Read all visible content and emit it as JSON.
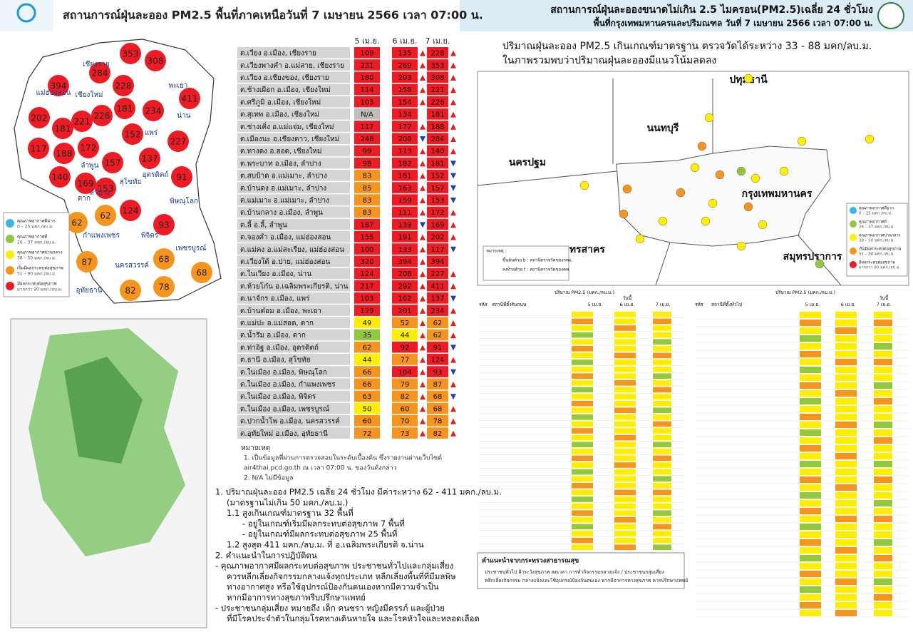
{
  "left": {
    "title": "สถานการณ์ฝุ่นละออง PM2.5 พื้นที่ภาคเหนือวันที่ 7 เมษายน 2566 เวลา 07:00 น.",
    "map_values": [
      353,
      308,
      284,
      394,
      228,
      411,
      202,
      181,
      221,
      226,
      181,
      234,
      152,
      227,
      117,
      188,
      172,
      157,
      137,
      91,
      140,
      169,
      153,
      124,
      62,
      62,
      93,
      87,
      68,
      68,
      82,
      78
    ],
    "provinces": [
      "แม่ฮ่องสอน",
      "เชียงใหม่",
      "เชียงราย",
      "พะเยา",
      "น่าน",
      "แพร่",
      "ลำปาง",
      "ลำพูน",
      "อุตรดิตถ์",
      "สุโขทัย",
      "ตาก",
      "พิษณุโลก",
      "กำแพงเพชร",
      "พิจิตร",
      "เพชรบูรณ์",
      "นครสวรรค์",
      "อุทัยธานี"
    ],
    "legend": [
      {
        "label": "คุณภาพอากาศดีมาก",
        "range": "0 – 25 มคก./ลบ.ม.",
        "max": 25,
        "color": "#3ab7e8"
      },
      {
        "label": "คุณภาพอากาศดี",
        "range": "26 – 37 มคก./ลบ.ม.",
        "max": 37,
        "color": "#92c83e"
      },
      {
        "label": "คุณภาพอากาศปานกลาง",
        "range": "38 – 50 มคก./ลบ.ม.",
        "max": 50,
        "color": "#ffee00"
      },
      {
        "label": "เริ่มมีผลกระทบต่อสุขภาพ",
        "range": "51 – 90 มคก./ลบ.ม.",
        "max": 90,
        "color": "#f7941d"
      },
      {
        "label": "มีผลกระทบต่อสุขภาพ",
        "range": "มากกว่า 90 มคก./ลบ.ม.",
        "color": "#ed1c24"
      }
    ],
    "table": {
      "headers": [
        "5 เม.ย.",
        "6 เม.ย.",
        "7 เม.ย."
      ],
      "rows": [
        {
          "station": "ต.เวียง อ.เมือง, เชียงราย",
          "values": [
            109,
            135,
            228
          ]
        },
        {
          "station": "ต.เวียงพางคำ อ.แม่สาย, เชียงราย",
          "values": [
            231,
            269,
            353
          ]
        },
        {
          "station": "ต.เวียง อ.เชียงของ, เชียงราย",
          "values": [
            180,
            203,
            308
          ]
        },
        {
          "station": "ต.ช้างเผือก อ.เมือง, เชียงใหม่",
          "values": [
            114,
            158,
            221
          ]
        },
        {
          "station": "ต.ศรีภูมิ อ.เมือง, เชียงใหม่",
          "values": [
            103,
            154,
            226
          ]
        },
        {
          "station": "ต.สุเทพ อ.เมือง, เชียงใหม่",
          "values": [
            "N/A",
            134,
            181
          ]
        },
        {
          "station": "ต.ช่างเคิ่ง อ.แม่แจ่ม, เชียงใหม่",
          "values": [
            117,
            177,
            188
          ]
        },
        {
          "station": "ต.เมืองนะ อ.เชียงดาว, เชียงใหม่",
          "values": [
            248,
            208,
            284
          ]
        },
        {
          "station": "ต.ทางดง อ.ฮอด, เชียงใหม่",
          "values": [
            99,
            113,
            140
          ]
        },
        {
          "station": "ต.พระบาท อ.เมือง, ลำปาง",
          "values": [
            98,
            182,
            181
          ]
        },
        {
          "station": "ต.สบป้าด อ.แม่เมาะ, ลำปาง",
          "values": [
            83,
            161,
            152
          ]
        },
        {
          "station": "ต.บ้านดง อ.แม่เมาะ, ลำปาง",
          "values": [
            85,
            163,
            157
          ]
        },
        {
          "station": "ต.แม่เมาะ อ.แม่เมาะ, ลำปาง",
          "values": [
            83,
            159,
            153
          ]
        },
        {
          "station": "ต.บ้านกลาง อ.เมือง, ลำพูน",
          "values": [
            83,
            111,
            172
          ]
        },
        {
          "station": "ต.ลี้ อ.ลี้, ลำพูน",
          "values": [
            187,
            139,
            169
          ]
        },
        {
          "station": "ต.จองคำ อ.เมือง, แม่ฮ่องสอน",
          "values": [
            155,
            191,
            202
          ]
        },
        {
          "station": "ต.แม่คง อ.แม่สะเรียง, แม่ฮ่องสอน",
          "values": [
            100,
            133,
            117
          ]
        },
        {
          "station": "ต.เวียงใต้ อ.ปาย, แม่ฮ่องสอน",
          "values": [
            320,
            394,
            394
          ]
        },
        {
          "station": "ต.ในเวียง อ.เมือง, น่าน",
          "values": [
            124,
            208,
            227
          ]
        },
        {
          "station": "ต.ห้วยโก๋น อ.เฉลิมพระเกียรติ, น่าน",
          "values": [
            217,
            292,
            411
          ]
        },
        {
          "station": "ต.นาจักร อ.เมือง, แพร่",
          "values": [
            103,
            162,
            137
          ]
        },
        {
          "station": "ต.บ้านต๋อม อ.เมือง, พะเยา",
          "values": [
            129,
            201,
            234
          ]
        },
        {
          "station": "ต.แม่ปะ อ.แม่สอด, ตาก",
          "values": [
            49,
            52,
            62
          ]
        },
        {
          "station": "ต.น้ำรึม อ.เมือง, ตาก",
          "values": [
            35,
            44,
            62
          ]
        },
        {
          "station": "ต.ท่าอิฐ อ.เมือง, อุตรดิตถ์",
          "values": [
            62,
            92,
            91
          ]
        },
        {
          "station": "ต.ธานี อ.เมือง, สุโขทัย",
          "values": [
            44,
            77,
            124
          ]
        },
        {
          "station": "ต.ในเมือง อ.เมือง, พิษณุโลก",
          "values": [
            66,
            104,
            93
          ]
        },
        {
          "station": "ต.ในเมือง อ.เมือง, กำแพงเพชร",
          "values": [
            66,
            79,
            87
          ]
        },
        {
          "station": "ต.ในเมือง อ.เมือง, พิจิตร",
          "values": [
            63,
            82,
            68
          ]
        },
        {
          "station": "ต.ในเมือง อ.เมือง, เพชรบูรณ์",
          "values": [
            50,
            60,
            68
          ]
        },
        {
          "station": "ต.ปากน้ำโพ อ.เมือง, นครสวรรค์",
          "values": [
            60,
            70,
            78
          ]
        },
        {
          "station": "ต.อุทัยใหม่ อ.เมือง, อุทัยธานี",
          "values": [
            72,
            73,
            82
          ]
        }
      ]
    },
    "notes": [
      "หมายเหตุ",
      "1. เป็นข้อมูลที่ผ่านการตรวจสอบในระดับเบื้องต้น ซึ่งรายงานผ่านเว็บไซต์",
      "air4thai.pcd.go.th ณ เวลา 07:00 น. ของวันดังกล่าว",
      "2. N/A ไม่มีข้อมูล"
    ],
    "summary": [
      "1. ปริมาณฝุ่นละออง PM2.5 เฉลี่ย 24 ชั่วโมง มีค่าระหว่าง 62 - 411 มคก./ลบ.ม.",
      "(มาตรฐานไม่เกิน 50 มคก./ลบ.ม.)",
      "1.1 สูงเกินเกณฑ์มาตรฐาน 32 พื้นที่",
      "- อยู่ในเกณฑ์เริ่มมีผลกระทบต่อสุขภาพ 7 พื้นที่",
      "- อยู่ในเกณฑ์มีผลกระทบต่อสุขภาพ 25 พื้นที่",
      "1.2 สูงสุด 411 มคก./ลบ.ม. ที่ อ.เฉลิมพระเกียรติ จ.น่าน",
      "2. คำแนะนำในการปฏิบัติตน",
      "- คุณภาพอากาศมีผลกระทบต่อสุขภาพ ประชาชนทั่วไปและกลุ่มเสี่ยง",
      "ควรหลีกเลี่ยงกิจกรรมกลางแจ้งทุกประเภท หลีกเลี่ยงพื้นที่ที่มีมลพิษ",
      "ทางอากาศสูง หรือใช้อุปกรณ์ป้องกันตนเองหากมีความจำเป็น",
      "หากมีอาการทางสุขภาพรีบปรึกษาแพทย์",
      "- ประชาชนกลุ่มเสี่ยง หมายถึง เด็ก คนชรา หญิงมีครรภ์ และผู้ป่วย",
      "ที่มีโรคประจำตัวในกลุ่มโรคทางเดินหายใจ และโรคหัวใจและหลอดเลือด"
    ]
  },
  "right": {
    "title": "สถานการณ์ฝุ่นละอองขนาดไม่เกิน 2.5 ไมครอน(PM2.5)เฉลี่ย 24 ชั่วโมง",
    "subtitle": "พื้นที่กรุงเทพมหานครและปริมณฑล วันที่ 7 เมษายน 2566 เวลา 07:00 น.",
    "summary": [
      "ปริมาณฝุ่นละออง PM2.5 เกินเกณฑ์มาตรฐาน ตรวจวัดได้ระหว่าง 33 - 88 มคก/ลบ.ม.",
      "ในภาพรวมพบว่าปริมาณฝุ่นละอองมีแนวโน้มลดลง"
    ],
    "areas": [
      "ปทุมธานี",
      "นนทบุรี",
      "นครปฐม",
      "กรุงเทพมหานคร",
      "สมุทรสาคร",
      "สมุทรปราการ"
    ],
    "legend": [
      {
        "label": "คุณภาพอากาศดีมาก",
        "range": "0 – 25 มคก./ลบ.ม.",
        "color": "#3ab7e8"
      },
      {
        "label": "คุณภาพอากาศดี",
        "range": "26 – 37 มคก./ลบ.ม.",
        "color": "#92c83e"
      },
      {
        "label": "คุณภาพอากาศปานกลาง",
        "range": "38 – 50 มคก./ลบ.ม.",
        "color": "#ffee00"
      },
      {
        "label": "เริ่มมีผลกระทบต่อสุขภาพ",
        "range": "51 – 90 มคก./ลบ.ม.",
        "color": "#f7941d"
      },
      {
        "label": "มีผลกระทบต่อสุขภาพ",
        "range": "มากกว่า 90 มคก./ลบ.ม.",
        "color": "#ed1c24"
      }
    ],
    "map_note": [
      "หมายเหตุ :",
      "ขึ้นต้นด้วย b : สถานีตรวจวัดของกทม.",
      "ลงท้ายด้วย t : สถานีตรวจวัดของคพ."
    ],
    "tables": [
      {
        "headers": [
          "รหัส",
          "สถานีที่ตั้งริมถนน",
          "ปริมาณ PM2.5 (มคก./ลบ.ม.)",
          "วันนี้",
          "5 เม.ย.",
          "6 เม.ย.",
          "7 เม.ย."
        ]
      },
      {
        "headers": [
          "รหัส",
          "สถานีที่ตั้งทั่วไป",
          "ปริมาณ PM2.5 (มคก./ลบ.ม.)",
          "วันนี้",
          "5 เม.ย.",
          "6 เม.ย.",
          "7 เม.ย."
        ]
      }
    ],
    "advice": {
      "title": "คำแนะนำจากกระทรวงสาธารณสุข",
      "lines": [
        "ประชาชนทั่วไป ฝ้าระวังสุขภาพ ลดเวลา การทำกิจกรรมกลางแจ้ง / ประชาชนกลุ่มเสี่ยง",
        "หลีกเลี่ยงกิจกรรม กลางแจ้งและใช้อุปกรณ์ป้องกันตนเอง หากมีอาการทางสุขภาพ ควรปรึกษาแพทย์"
      ]
    }
  }
}
